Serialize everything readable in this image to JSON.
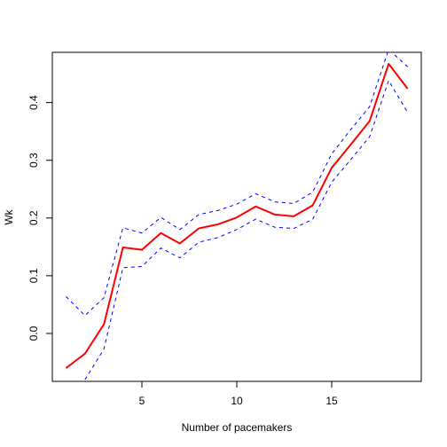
{
  "chart_data": {
    "type": "line",
    "title": "",
    "xlabel": "Number of pacemakers",
    "ylabel": "Wk",
    "xlim": [
      0.28,
      19.72
    ],
    "ylim": [
      -0.083,
      0.487
    ],
    "xticks": [
      5,
      10,
      15
    ],
    "yticks": [
      0.0,
      0.1,
      0.2,
      0.3,
      0.4
    ],
    "xtick_labels": [
      "5",
      "10",
      "15"
    ],
    "ytick_labels": [
      "0.0",
      "0.1",
      "0.2",
      "0.3",
      "0.4"
    ],
    "grid": false,
    "legend": "none",
    "x": [
      1,
      2,
      3,
      4,
      5,
      6,
      7,
      8,
      9,
      10,
      11,
      12,
      13,
      14,
      15,
      16,
      17,
      18,
      19
    ],
    "series": [
      {
        "role": "estimate",
        "color": "#ff0000",
        "style": "solid",
        "values": [
          -0.06,
          -0.035,
          0.016,
          0.149,
          0.145,
          0.174,
          0.156,
          0.182,
          0.189,
          0.201,
          0.22,
          0.206,
          0.203,
          0.222,
          0.287,
          0.327,
          0.368,
          0.467,
          0.424
        ]
      },
      {
        "role": "upper",
        "color": "#0000ff",
        "style": "dashed",
        "values": [
          0.064,
          0.031,
          0.062,
          0.183,
          0.174,
          0.201,
          0.18,
          0.206,
          0.213,
          0.224,
          0.242,
          0.228,
          0.225,
          0.245,
          0.311,
          0.353,
          0.393,
          0.492,
          0.462
        ]
      },
      {
        "role": "lower",
        "color": "#0000ff",
        "style": "dashed",
        "values": [
          null,
          -0.08,
          -0.027,
          0.114,
          0.116,
          0.148,
          0.131,
          0.158,
          0.166,
          0.18,
          0.198,
          0.184,
          0.182,
          0.198,
          0.262,
          0.301,
          0.341,
          0.438,
          0.383
        ]
      }
    ]
  }
}
